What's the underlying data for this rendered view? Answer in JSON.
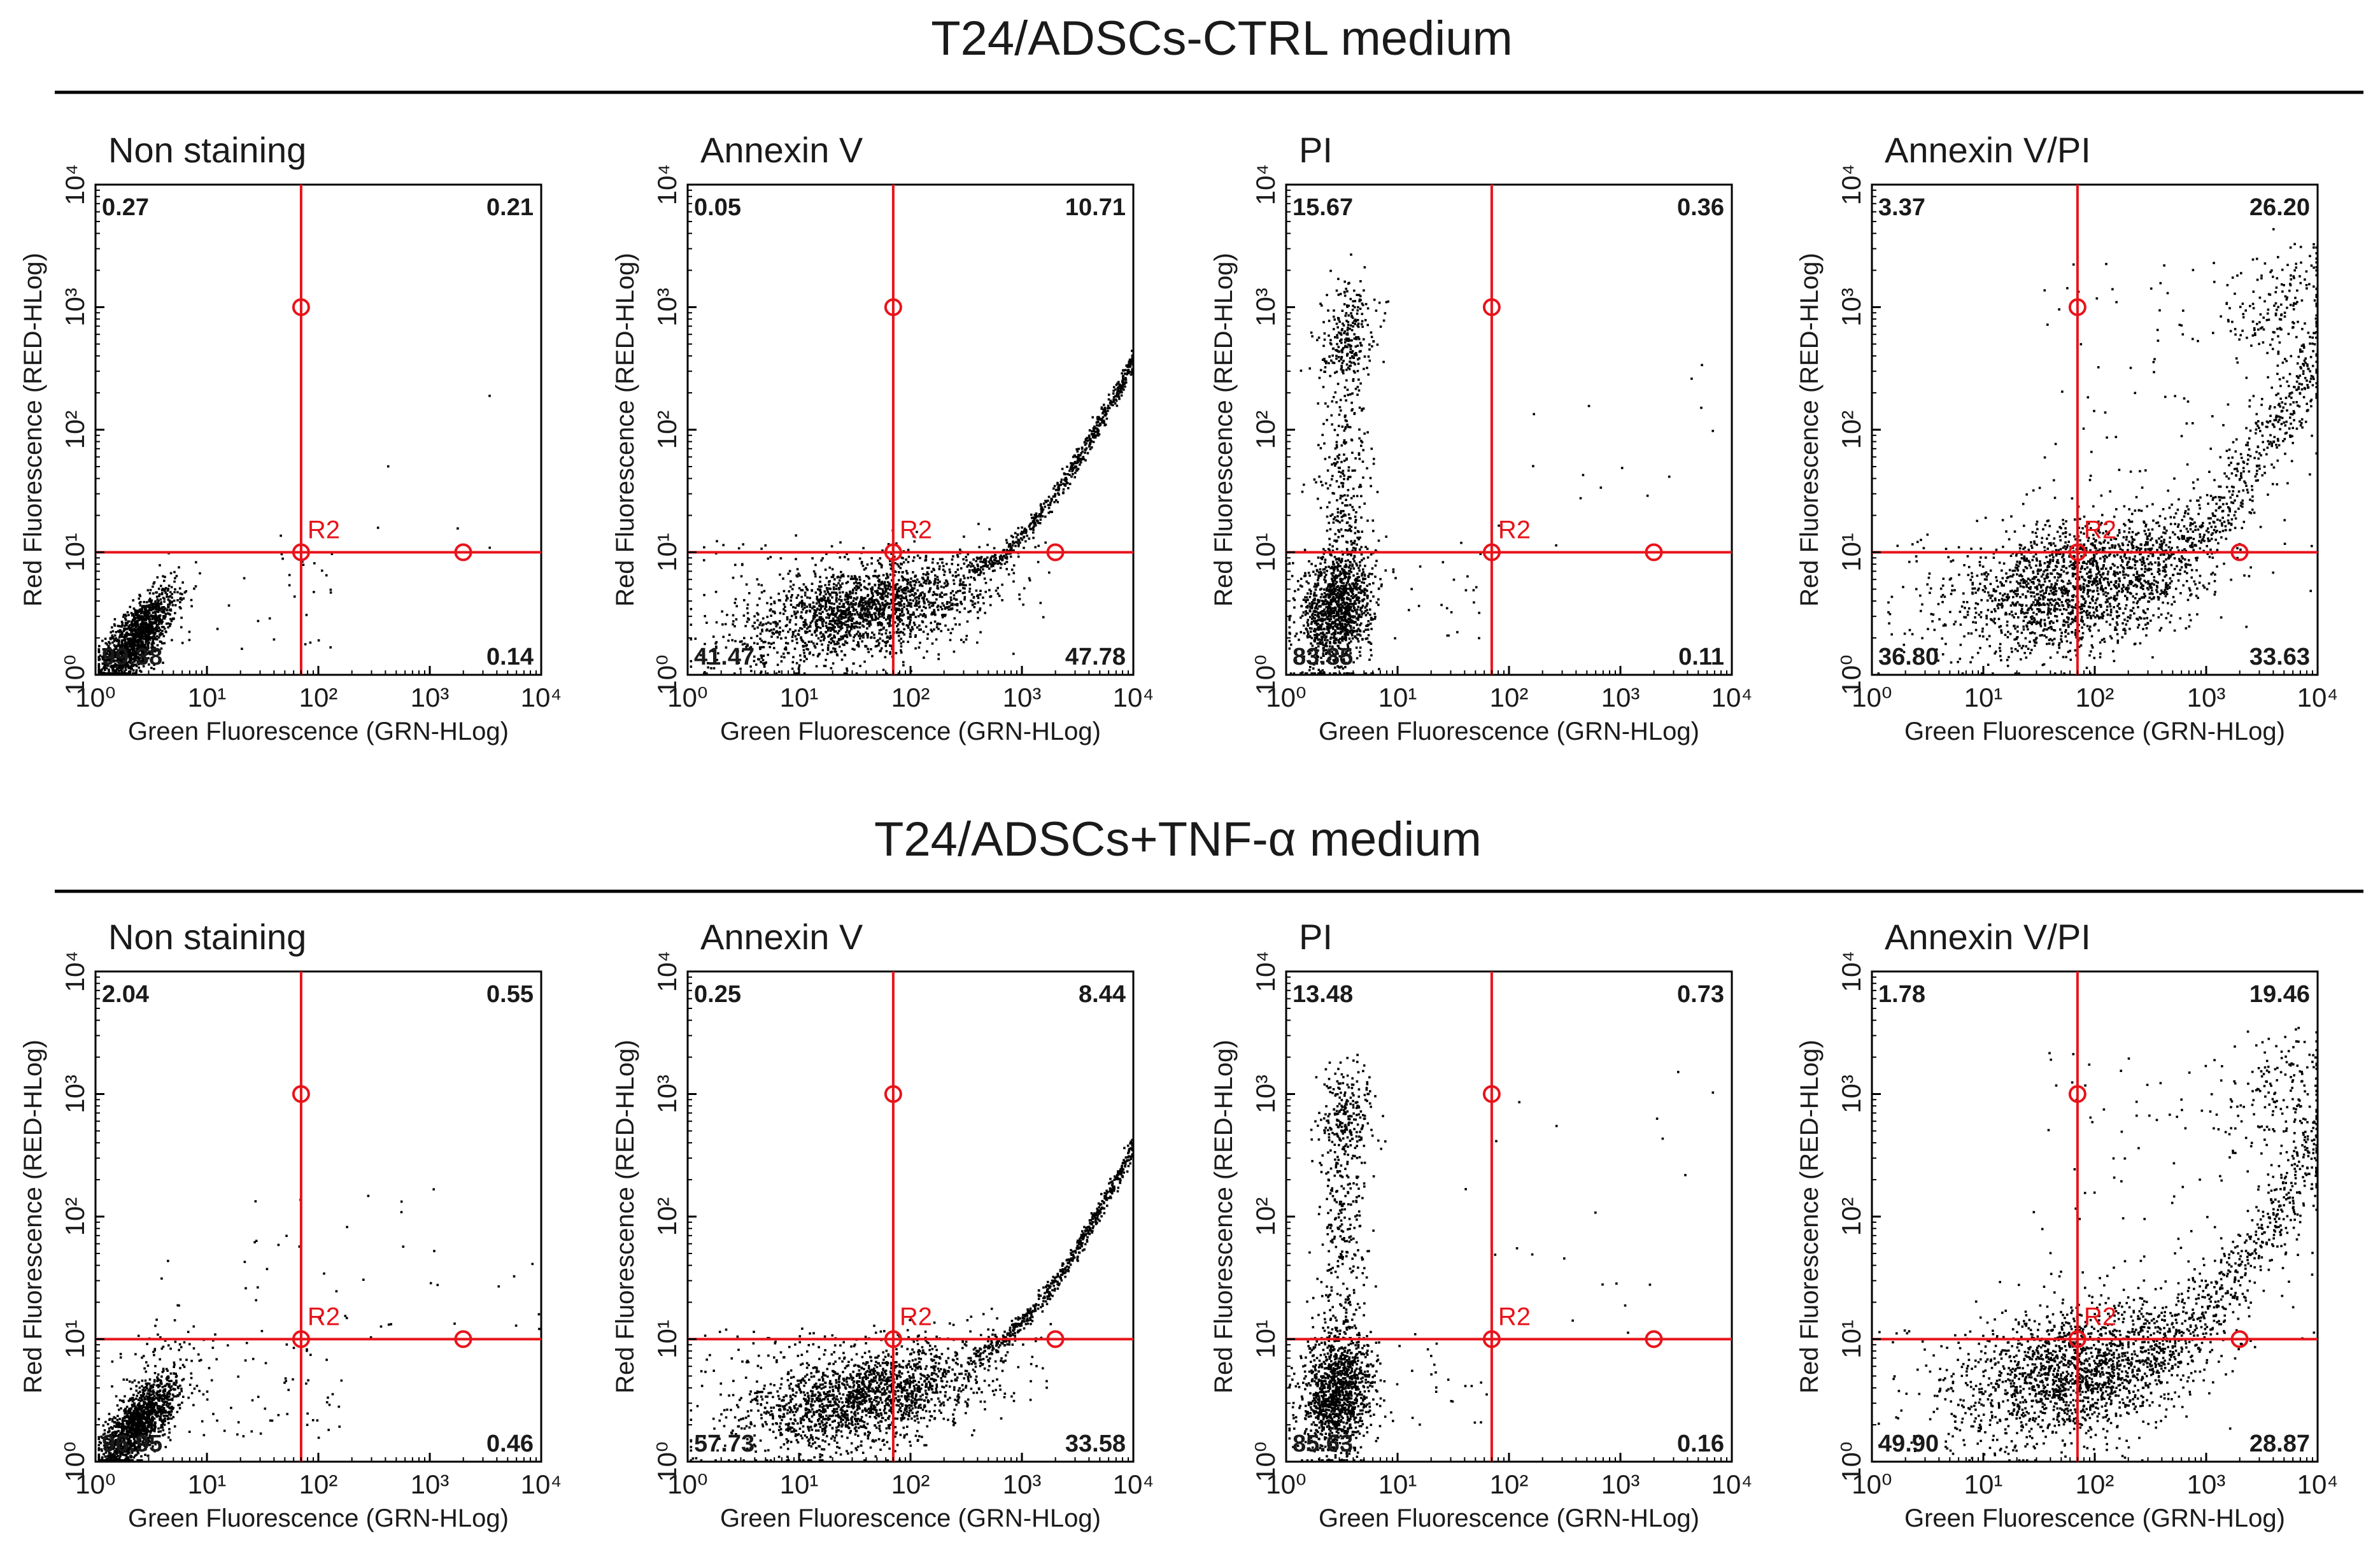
{
  "figure": {
    "rows": [
      {
        "title": "T24/ADSCs-CTRL medium",
        "panels": [
          {
            "label": "Non staining",
            "q": {
              "ul": "0.27",
              "ur": "0.21",
              "ll": "99.38",
              "lr": "0.14"
            }
          },
          {
            "label": "Annexin V",
            "q": {
              "ul": "0.05",
              "ur": "10.71",
              "ll": "41.47",
              "lr": "47.78"
            }
          },
          {
            "label": "PI",
            "q": {
              "ul": "15.67",
              "ur": "0.36",
              "ll": "83.85",
              "lr": "0.11"
            }
          },
          {
            "label": "Annexin V/PI",
            "q": {
              "ul": "3.37",
              "ur": "26.20",
              "ll": "36.80",
              "lr": "33.63"
            }
          }
        ]
      },
      {
        "title": "T24/ADSCs+TNF-α medium",
        "panels": [
          {
            "label": "Non staining",
            "q": {
              "ul": "2.04",
              "ur": "0.55",
              "ll": "96.95",
              "lr": "0.46"
            }
          },
          {
            "label": "Annexin V",
            "q": {
              "ul": "0.25",
              "ur": "8.44",
              "ll": "57.73",
              "lr": "33.58"
            }
          },
          {
            "label": "PI",
            "q": {
              "ul": "13.48",
              "ur": "0.73",
              "ll": "85.63",
              "lr": "0.16"
            }
          },
          {
            "label": "Annexin V/PI",
            "q": {
              "ul": "1.78",
              "ur": "19.46",
              "ll": "49.90",
              "lr": "28.87"
            }
          }
        ]
      }
    ],
    "gate_label": "R2",
    "xlabel": "Green Fluorescence (GRN-HLog)",
    "ylabel": "Red Fluorescence (RED-HLog)"
  },
  "chart_data": [
    {
      "type": "scatter",
      "title": "Non staining",
      "row": "T24/ADSCs-CTRL medium",
      "xlabel": "Green Fluorescence (GRN-HLog)",
      "ylabel": "Red Fluorescence (RED-HLog)",
      "xscale": "log",
      "yscale": "log",
      "xlim": [
        1,
        10000
      ],
      "ylim": [
        1,
        10000
      ],
      "xticks": [
        "10^0",
        "10^1",
        "10^2",
        "10^3",
        "10^4"
      ],
      "yticks": [
        "10^0",
        "10^1",
        "10^2",
        "10^3",
        "10^4"
      ],
      "gate": {
        "name": "R2",
        "x": 70,
        "y": 10
      },
      "quadrant_percent": {
        "upper_left": 0.27,
        "upper_right": 0.21,
        "lower_left": 99.38,
        "lower_right": 0.14
      }
    },
    {
      "type": "scatter",
      "title": "Annexin V",
      "row": "T24/ADSCs-CTRL medium",
      "xlabel": "Green Fluorescence (GRN-HLog)",
      "ylabel": "Red Fluorescence (RED-HLog)",
      "xscale": "log",
      "yscale": "log",
      "xlim": [
        1,
        10000
      ],
      "ylim": [
        1,
        10000
      ],
      "xticks": [
        "10^0",
        "10^1",
        "10^2",
        "10^3",
        "10^4"
      ],
      "yticks": [
        "10^0",
        "10^1",
        "10^2",
        "10^3",
        "10^4"
      ],
      "gate": {
        "name": "R2",
        "x": 70,
        "y": 10
      },
      "quadrant_percent": {
        "upper_left": 0.05,
        "upper_right": 10.71,
        "lower_left": 41.47,
        "lower_right": 47.78
      }
    },
    {
      "type": "scatter",
      "title": "PI",
      "row": "T24/ADSCs-CTRL medium",
      "xlabel": "Green Fluorescence (GRN-HLog)",
      "ylabel": "Red Fluorescence (RED-HLog)",
      "xscale": "log",
      "yscale": "log",
      "xlim": [
        1,
        10000
      ],
      "ylim": [
        1,
        10000
      ],
      "xticks": [
        "10^0",
        "10^1",
        "10^2",
        "10^3",
        "10^4"
      ],
      "yticks": [
        "10^0",
        "10^1",
        "10^2",
        "10^3",
        "10^4"
      ],
      "gate": {
        "name": "R2",
        "x": 70,
        "y": 10
      },
      "quadrant_percent": {
        "upper_left": 15.67,
        "upper_right": 0.36,
        "lower_left": 83.85,
        "lower_right": 0.11
      }
    },
    {
      "type": "scatter",
      "title": "Annexin V/PI",
      "row": "T24/ADSCs-CTRL medium",
      "xlabel": "Green Fluorescence (GRN-HLog)",
      "ylabel": "Red Fluorescence (RED-HLog)",
      "xscale": "log",
      "yscale": "log",
      "xlim": [
        1,
        10000
      ],
      "ylim": [
        1,
        10000
      ],
      "xticks": [
        "10^0",
        "10^1",
        "10^2",
        "10^3",
        "10^4"
      ],
      "yticks": [
        "10^0",
        "10^1",
        "10^2",
        "10^3",
        "10^4"
      ],
      "gate": {
        "name": "R2",
        "x": 70,
        "y": 10
      },
      "quadrant_percent": {
        "upper_left": 3.37,
        "upper_right": 26.2,
        "lower_left": 36.8,
        "lower_right": 33.63
      }
    },
    {
      "type": "scatter",
      "title": "Non staining",
      "row": "T24/ADSCs+TNF-α medium",
      "xlabel": "Green Fluorescence (GRN-HLog)",
      "ylabel": "Red Fluorescence (RED-HLog)",
      "xscale": "log",
      "yscale": "log",
      "xlim": [
        1,
        10000
      ],
      "ylim": [
        1,
        10000
      ],
      "xticks": [
        "10^0",
        "10^1",
        "10^2",
        "10^3",
        "10^4"
      ],
      "yticks": [
        "10^0",
        "10^1",
        "10^2",
        "10^3",
        "10^4"
      ],
      "gate": {
        "name": "R2",
        "x": 70,
        "y": 10
      },
      "quadrant_percent": {
        "upper_left": 2.04,
        "upper_right": 0.55,
        "lower_left": 96.95,
        "lower_right": 0.46
      }
    },
    {
      "type": "scatter",
      "title": "Annexin V",
      "row": "T24/ADSCs+TNF-α medium",
      "xlabel": "Green Fluorescence (GRN-HLog)",
      "ylabel": "Red Fluorescence (RED-HLog)",
      "xscale": "log",
      "yscale": "log",
      "xlim": [
        1,
        10000
      ],
      "ylim": [
        1,
        10000
      ],
      "xticks": [
        "10^0",
        "10^1",
        "10^2",
        "10^3",
        "10^4"
      ],
      "yticks": [
        "10^0",
        "10^1",
        "10^2",
        "10^3",
        "10^4"
      ],
      "gate": {
        "name": "R2",
        "x": 70,
        "y": 10
      },
      "quadrant_percent": {
        "upper_left": 0.25,
        "upper_right": 8.44,
        "lower_left": 57.73,
        "lower_right": 33.58
      }
    },
    {
      "type": "scatter",
      "title": "PI",
      "row": "T24/ADSCs+TNF-α medium",
      "xlabel": "Green Fluorescence (GRN-HLog)",
      "ylabel": "Red Fluorescence (RED-HLog)",
      "xscale": "log",
      "yscale": "log",
      "xlim": [
        1,
        10000
      ],
      "ylim": [
        1,
        10000
      ],
      "xticks": [
        "10^0",
        "10^1",
        "10^2",
        "10^3",
        "10^4"
      ],
      "yticks": [
        "10^0",
        "10^1",
        "10^2",
        "10^3",
        "10^4"
      ],
      "gate": {
        "name": "R2",
        "x": 70,
        "y": 10
      },
      "quadrant_percent": {
        "upper_left": 13.48,
        "upper_right": 0.73,
        "lower_left": 85.63,
        "lower_right": 0.16
      }
    },
    {
      "type": "scatter",
      "title": "Annexin V/PI",
      "row": "T24/ADSCs+TNF-α medium",
      "xlabel": "Green Fluorescence (GRN-HLog)",
      "ylabel": "Red Fluorescence (RED-HLog)",
      "xscale": "log",
      "yscale": "log",
      "xlim": [
        1,
        10000
      ],
      "ylim": [
        1,
        10000
      ],
      "xticks": [
        "10^0",
        "10^1",
        "10^2",
        "10^3",
        "10^4"
      ],
      "yticks": [
        "10^0",
        "10^1",
        "10^2",
        "10^3",
        "10^4"
      ],
      "gate": {
        "name": "R2",
        "x": 70,
        "y": 10
      },
      "quadrant_percent": {
        "upper_left": 1.78,
        "upper_right": 19.46,
        "lower_left": 49.9,
        "lower_right": 28.87
      }
    }
  ],
  "colors": {
    "gate": "#e8131a",
    "points": "#000000",
    "text": "#1a1a1a"
  }
}
